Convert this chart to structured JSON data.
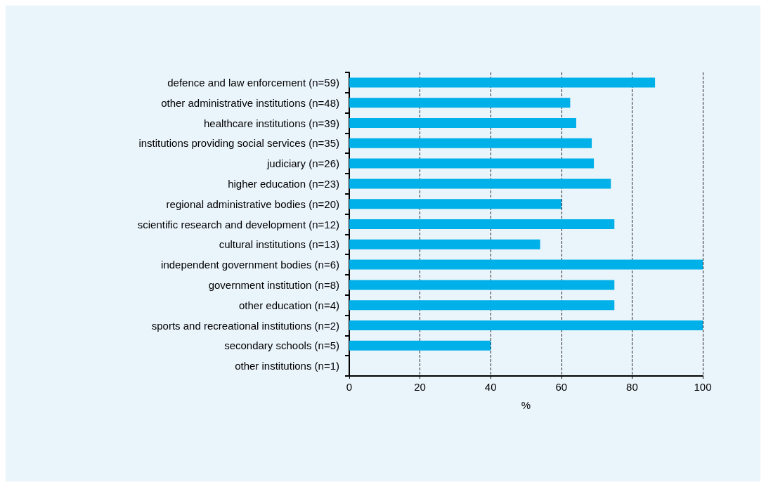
{
  "chart_data": {
    "type": "bar",
    "orientation": "horizontal",
    "xlabel": "%",
    "categories": [
      "defence and law enforcement (n=59)",
      "other administrative institutions (n=48)",
      "healthcare institutions (n=39)",
      "institutions providing social services (n=35)",
      "judiciary (n=26)",
      "higher education (n=23)",
      "regional administrative bodies (n=20)",
      "scientific research and development (n=12)",
      "cultural institutions (n=13)",
      "independent government bodies (n=6)",
      "government institution (n=8)",
      "other education (n=4)",
      "sports and recreational institutions (n=2)",
      "secondary schools (n=5)",
      "other institutions (n=1)"
    ],
    "values": [
      86.5,
      62.5,
      64.2,
      68.6,
      69.2,
      74,
      60,
      75,
      54,
      100,
      75,
      75,
      100,
      40,
      0
    ],
    "color": "#00b0e8",
    "xlim": [
      0,
      100
    ],
    "xticks": [
      0,
      20,
      40,
      60,
      80,
      100
    ],
    "grid": "x"
  }
}
